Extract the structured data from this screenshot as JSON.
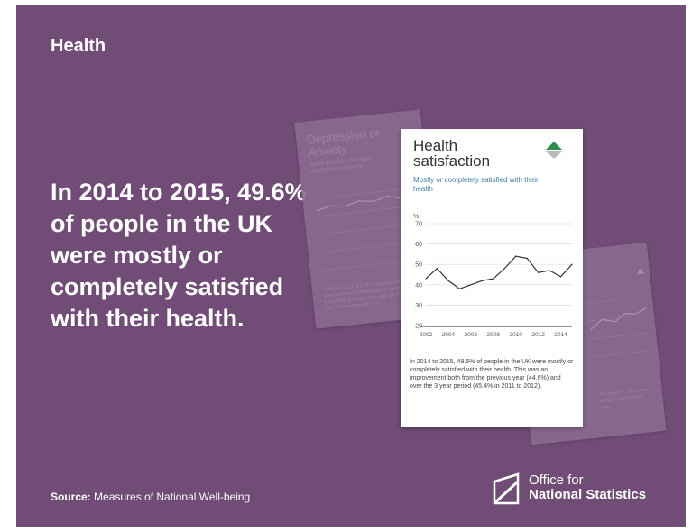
{
  "section_title": "Health",
  "headline": "In 2014 to 2015, 49.6% of people in the UK were mostly or completely satisfied with their health.",
  "source": {
    "label": "Source:",
    "text": "Measures of National Well-being"
  },
  "logo": {
    "line1": "Office for",
    "line2": "National Statistics"
  },
  "ghost_card_left": {
    "title": "Depression or Anxiety",
    "subtitle": "Some evidence indicating depression or anxiety",
    "text": "In 2014 to 2015, 17.1% of people showed some evidence of depression or anxiety. This was similar to the previous year (18.7%) and over the 3 year period."
  },
  "ghost_card_right": {
    "text": "The level of ... remained similar to the previous year."
  },
  "card": {
    "title_line1": "Health",
    "title_line2": "satisfaction",
    "subtitle": "Mostly or completely satisfied with their health",
    "text": "In 2014 to 2015, 49.6% of people in the UK were mostly or completely satisfied with their health. This was an improvement both from the previous year (44.6%) and over the 3 year period (45.4% in 2011 to 2012)."
  },
  "colors": {
    "background": "#704c76",
    "trend_up": "#2e8b4e",
    "trend_down": "#b9b9b9",
    "line": "#333333"
  },
  "chart_data": {
    "type": "line",
    "ylabel": "%",
    "ylim": [
      20,
      70
    ],
    "yticks": [
      20,
      30,
      40,
      50,
      60,
      70
    ],
    "xlim": [
      2002,
      2015
    ],
    "xticks": [
      2002,
      2004,
      2006,
      2008,
      2010,
      2012,
      2014
    ],
    "grid": true,
    "x": [
      2002,
      2003,
      2004,
      2005,
      2006,
      2007,
      2008,
      2009,
      2010,
      2011,
      2012,
      2013,
      2014,
      2015
    ],
    "values": [
      43,
      48,
      42,
      38,
      40,
      42,
      43,
      48,
      54,
      53,
      46,
      47,
      44,
      50
    ]
  }
}
